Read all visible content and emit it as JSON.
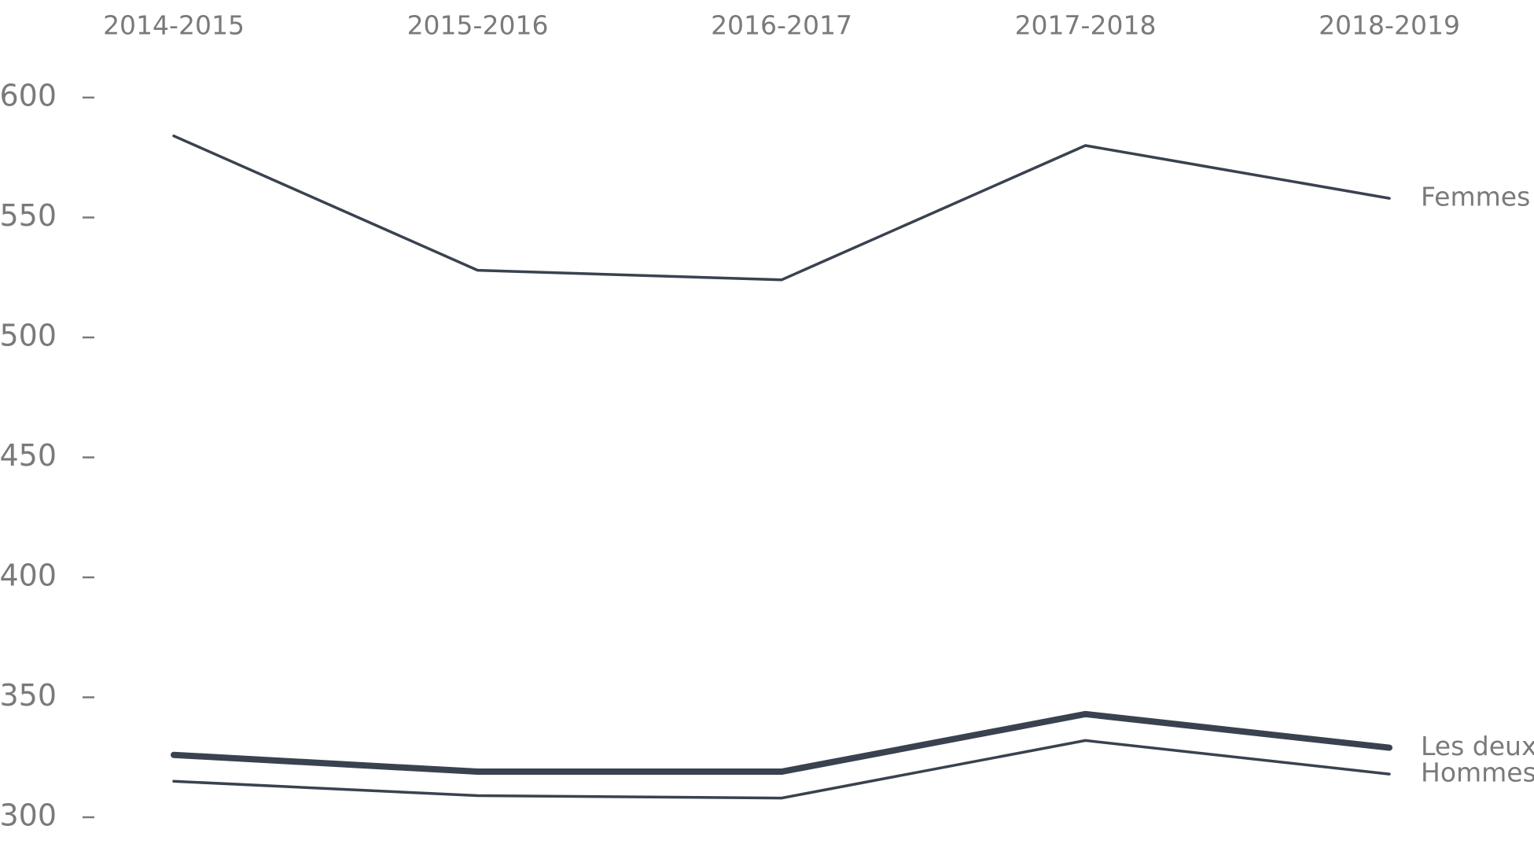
{
  "chart_data": {
    "type": "line",
    "categories": [
      "2014-2015",
      "2015-2016",
      "2016-2017",
      "2017-2018",
      "2018-2019"
    ],
    "series": [
      {
        "name": "Femmes",
        "color": "#3a4250",
        "linewidth": 3.5,
        "values": [
          584,
          528,
          524,
          580,
          558
        ]
      },
      {
        "name": "Les deux",
        "color": "#3a4250",
        "linewidth": 8,
        "values": [
          326,
          319,
          319,
          343,
          329
        ]
      },
      {
        "name": "Hommes",
        "color": "#3a4250",
        "linewidth": 3.5,
        "values": [
          315,
          309,
          308,
          332,
          318
        ]
      }
    ],
    "ylim": [
      300,
      600
    ],
    "yticks": [
      300,
      350,
      400,
      450,
      500,
      550,
      600
    ],
    "grid": false
  }
}
